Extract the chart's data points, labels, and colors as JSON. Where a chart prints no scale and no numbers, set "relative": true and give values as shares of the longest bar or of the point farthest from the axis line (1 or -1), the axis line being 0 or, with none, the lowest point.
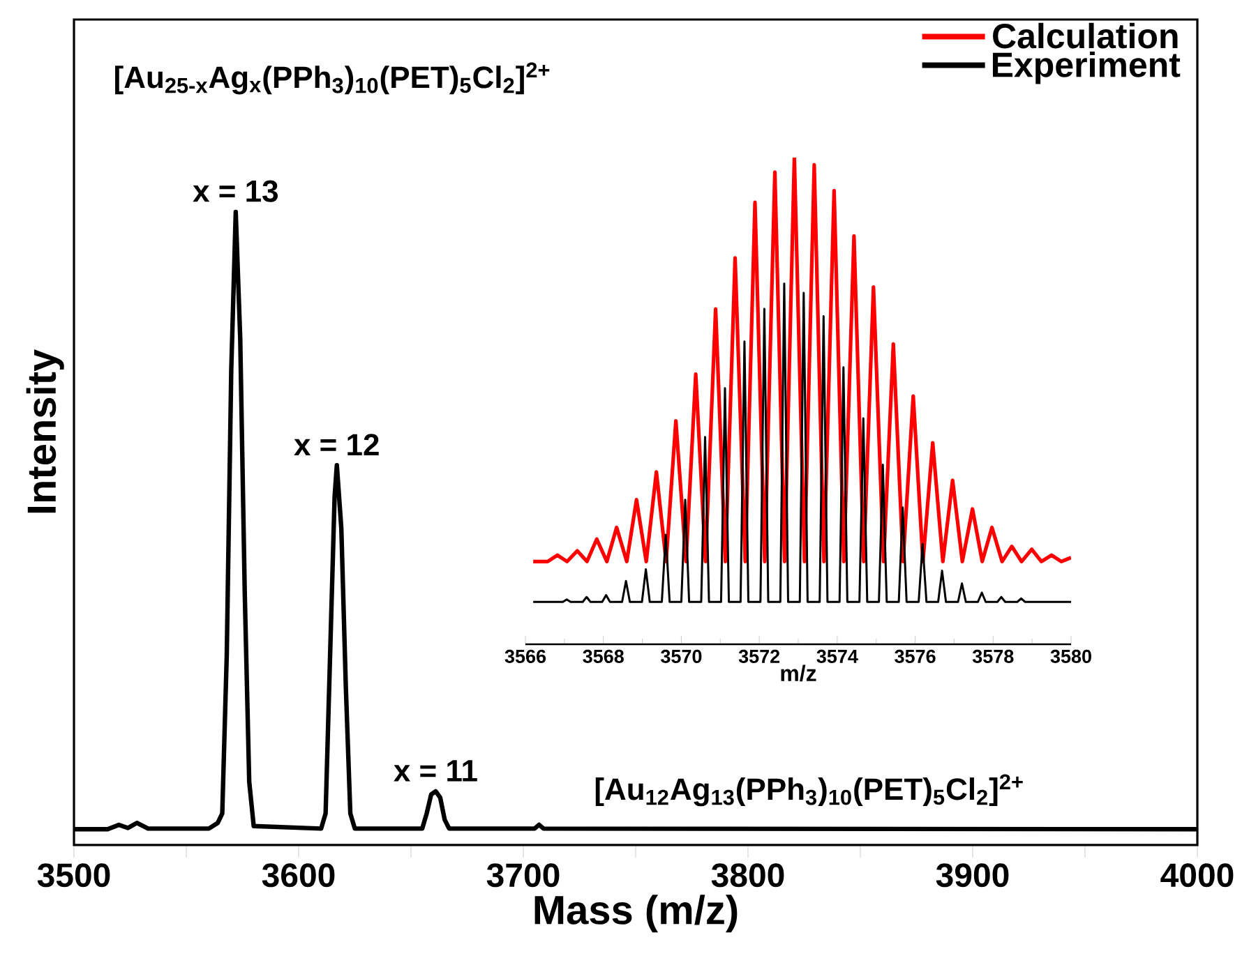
{
  "chart_data": [
    {
      "type": "line",
      "relative": true,
      "xlabel": "Mass (m/z)",
      "ylabel": "Intensity",
      "xlim": [
        3500,
        4000
      ],
      "xticks": [
        3500,
        3600,
        3700,
        3800,
        3900,
        4000
      ],
      "annotations": [
        "[Au$_{25-x}$Ag$_{x}$(PPh$_{3}$)$_{10}$(PET)$_{5}$Cl$_{2}$]$^{2+}$",
        {
          "text": "x = 13",
          "x": 3572,
          "y": 1
        },
        {
          "text": "x = 12",
          "x": 3617,
          "y": 0.6
        },
        {
          "text": "x = 11",
          "x": 3661,
          "y": 0.085
        }
      ],
      "series": [
        {
          "color": "#000000",
          "x": [
            3500,
            3515,
            3520,
            3524,
            3528,
            3533,
            3560,
            3564,
            3566,
            3568,
            3570,
            3572,
            3574,
            3576,
            3578,
            3580,
            3610,
            3612,
            3614,
            3616,
            3617,
            3619,
            3621,
            3623,
            3625,
            3655,
            3657,
            3659,
            3661,
            3663,
            3665,
            3667,
            3705,
            3707,
            3709,
            4000
          ],
          "values": [
            0.025,
            0.025,
            0.032,
            0.027,
            0.035,
            0.026,
            0.026,
            0.035,
            0.05,
            0.3,
            0.75,
            1,
            0.8,
            0.4,
            0.1,
            0.03,
            0.026,
            0.05,
            0.3,
            0.55,
            0.6,
            0.5,
            0.25,
            0.05,
            0.026,
            0.026,
            0.05,
            0.08,
            0.085,
            0.075,
            0.04,
            0.026,
            0.026,
            0.032,
            0.026,
            0.025
          ]
        }
      ]
    },
    {
      "type": "line",
      "relative": true,
      "xlabel": "m/z",
      "xlim": [
        3566,
        3580
      ],
      "xticks": [
        3566,
        3568,
        3570,
        3572,
        3574,
        3576,
        3578,
        3580
      ],
      "legend": "top right",
      "annotations": [
        "[Au$_{12}$Ag$_{13}$(PPh$_{3}$)$_{10}$(PET)$_{5}$Cl$_{2}$]$^{2+}$"
      ],
      "series": [
        {
          "name": "Calculation",
          "color": "#ff0000",
          "x": [
            3566.2,
            3566.57,
            3566.82,
            3567.07,
            3567.33,
            3567.58,
            3567.83,
            3568.09,
            3568.34,
            3568.6,
            3568.85,
            3569.1,
            3569.36,
            3569.61,
            3569.86,
            3570.12,
            3570.37,
            3570.62,
            3570.88,
            3571.13,
            3571.38,
            3571.64,
            3571.89,
            3572.14,
            3572.4,
            3572.65,
            3572.9,
            3573.16,
            3573.41,
            3573.66,
            3573.92,
            3574.17,
            3574.43,
            3574.68,
            3574.93,
            3575.19,
            3575.44,
            3575.69,
            3575.95,
            3576.2,
            3576.45,
            3576.71,
            3576.96,
            3577.21,
            3577.47,
            3577.72,
            3577.97,
            3578.23,
            3578.48,
            3578.73,
            3578.99,
            3579.24,
            3579.5,
            3579.75,
            3580
          ],
          "values": [
            0.17,
            0.17,
            0.183,
            0.17,
            0.192,
            0.17,
            0.216,
            0.17,
            0.24,
            0.17,
            0.297,
            0.17,
            0.354,
            0.17,
            0.459,
            0.17,
            0.555,
            0.17,
            0.689,
            0.17,
            0.794,
            0.17,
            0.908,
            0.17,
            0.97,
            0.17,
            1,
            0.17,
            0.985,
            0.17,
            0.932,
            0.17,
            0.839,
            0.17,
            0.734,
            0.17,
            0.617,
            0.17,
            0.51,
            0.17,
            0.414,
            0.17,
            0.337,
            0.17,
            0.278,
            0.17,
            0.24,
            0.17,
            0.201,
            0.17,
            0.195,
            0.17,
            0.183,
            0.17,
            0.178
          ]
        },
        {
          "name": "Experiment",
          "color": "#000000",
          "x": [
            3566.2,
            3566.96,
            3567.06,
            3567.16,
            3567.47,
            3567.57,
            3567.67,
            3567.97,
            3568.07,
            3568.17,
            3568.48,
            3568.58,
            3568.68,
            3568.99,
            3569.09,
            3569.19,
            3569.5,
            3569.6,
            3569.7,
            3570,
            3570.1,
            3570.2,
            3570.51,
            3570.61,
            3570.71,
            3571.02,
            3571.12,
            3571.22,
            3571.52,
            3571.62,
            3571.72,
            3572.03,
            3572.13,
            3572.23,
            3572.54,
            3572.64,
            3572.74,
            3573.04,
            3573.14,
            3573.24,
            3573.55,
            3573.65,
            3573.75,
            3574.06,
            3574.16,
            3574.26,
            3574.57,
            3574.67,
            3574.77,
            3575.07,
            3575.17,
            3575.27,
            3575.58,
            3575.68,
            3575.78,
            3576.09,
            3576.19,
            3576.29,
            3576.59,
            3576.69,
            3576.79,
            3577.1,
            3577.2,
            3577.3,
            3577.61,
            3577.71,
            3577.81,
            3578.11,
            3578.21,
            3578.31,
            3578.62,
            3578.72,
            3578.82,
            3580
          ],
          "values": [
            0.087,
            0.087,
            0.092,
            0.087,
            0.087,
            0.097,
            0.087,
            0.087,
            0.101,
            0.087,
            0.087,
            0.13,
            0.087,
            0.087,
            0.154,
            0.087,
            0.087,
            0.225,
            0.087,
            0.087,
            0.297,
            0.087,
            0.087,
            0.426,
            0.087,
            0.087,
            0.526,
            0.087,
            0.087,
            0.622,
            0.087,
            0.087,
            0.689,
            0.087,
            0.087,
            0.741,
            0.087,
            0.087,
            0.722,
            0.087,
            0.087,
            0.674,
            0.087,
            0.087,
            0.569,
            0.087,
            0.087,
            0.464,
            0.087,
            0.087,
            0.369,
            0.087,
            0.087,
            0.281,
            0.087,
            0.087,
            0.206,
            0.087,
            0.087,
            0.151,
            0.087,
            0.087,
            0.125,
            0.087,
            0.087,
            0.106,
            0.087,
            0.087,
            0.097,
            0.087,
            0.087,
            0.094,
            0.087,
            0.087
          ]
        }
      ]
    }
  ]
}
